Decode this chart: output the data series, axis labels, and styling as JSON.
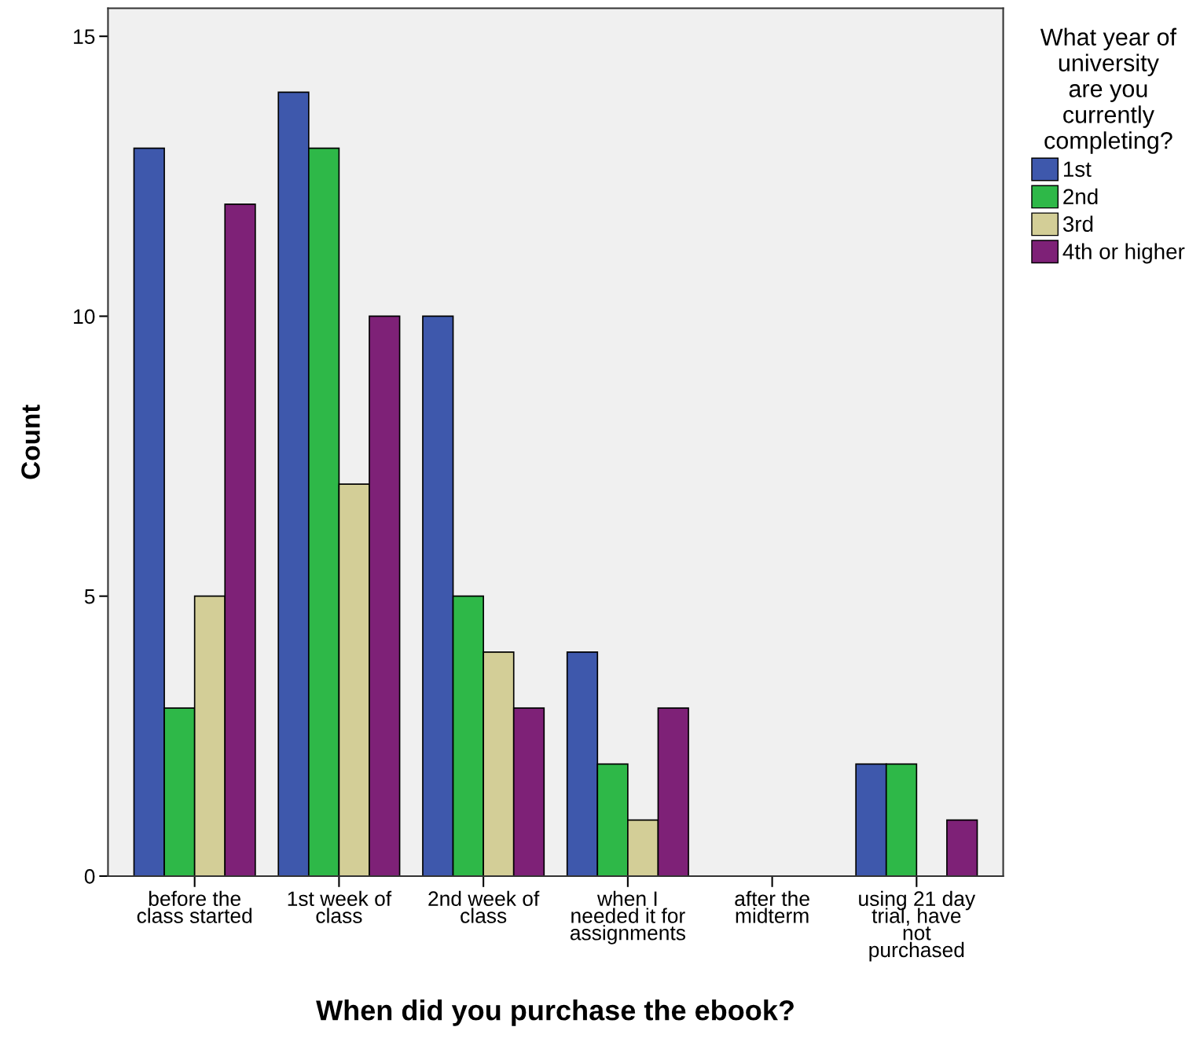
{
  "chart_data": {
    "type": "bar",
    "xlabel": "When did you purchase the ebook?",
    "ylabel": "Count",
    "legend_title": "What year of\nuniversity\nare you\ncurrently\ncompleting?",
    "categories": [
      "before the\nclass started",
      "1st week of\nclass",
      "2nd week of\nclass",
      "when I\nneeded it for\nassignments",
      "after the\nmidterm",
      "using 21 day\ntrial, have\nnot\npurchased"
    ],
    "series": [
      {
        "name": "1st",
        "color": "#3e58ac",
        "values": [
          13,
          14,
          10,
          4,
          null,
          2
        ]
      },
      {
        "name": "2nd",
        "color": "#2eb848",
        "values": [
          3,
          13,
          5,
          2,
          null,
          2
        ]
      },
      {
        "name": "3rd",
        "color": "#d3ce97",
        "values": [
          5,
          7,
          4,
          1,
          null,
          null
        ]
      },
      {
        "name": "4th or higher",
        "color": "#7e2177",
        "values": [
          12,
          10,
          3,
          3,
          null,
          1
        ]
      }
    ],
    "ylim": [
      0,
      15.5
    ],
    "yticks": [
      0,
      5,
      10,
      15
    ],
    "grid": false,
    "legend": "right"
  }
}
